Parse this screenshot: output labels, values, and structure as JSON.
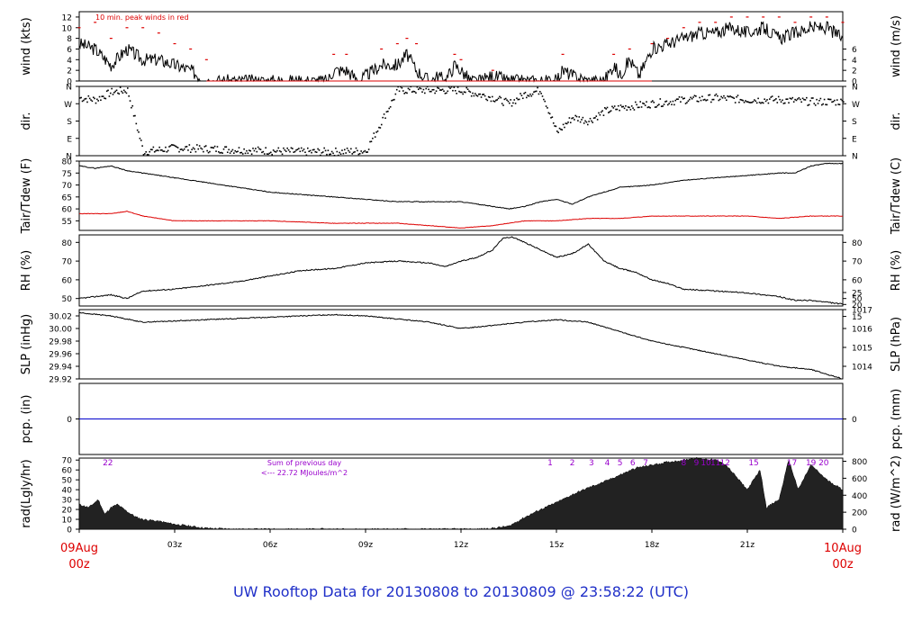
{
  "chart_data": {
    "type": "line",
    "title": "UW Rooftop Data for 20130808  to  20130809 @ 23:58:22  (UTC)",
    "x_start_label": [
      "09Aug",
      "00z"
    ],
    "x_end_label": [
      "10Aug",
      "00z"
    ],
    "x_ticks": [
      "03z",
      "06z",
      "09z",
      "12z",
      "15z",
      "18z",
      "21z"
    ],
    "x_tick_hours": [
      3,
      6,
      9,
      12,
      15,
      18,
      21
    ],
    "x_range_hours": [
      0,
      24
    ],
    "grid": false,
    "colors": {
      "main": "#000000",
      "peak": "#dd0000",
      "dew": "#dd0000",
      "precip": "#0000cc",
      "annot": "#9900cc",
      "title": "#1f2fc8",
      "date": "#dd0000"
    },
    "panels": [
      {
        "key": "wind",
        "left_label": "wind (kts)",
        "right_label": "wind (m/s)",
        "left_ticks": [
          "0",
          "2",
          "4",
          "6",
          "8",
          "10",
          "12"
        ],
        "left_tick_values": [
          0,
          2,
          4,
          6,
          8,
          10,
          12
        ],
        "right_ticks": [
          "0",
          "2",
          "4",
          "6"
        ],
        "right_tick_values": [
          0,
          2,
          4,
          6
        ],
        "ylim": [
          0,
          13
        ],
        "annotation": "10 min. peak winds in red",
        "series": [
          {
            "role": "wind",
            "hours": [
              0,
              0.5,
              1,
              1.5,
              2,
              2.5,
              3,
              3.5,
              4,
              5,
              6,
              7,
              7.8,
              8,
              8.4,
              8.8,
              9,
              9.5,
              10,
              10.3,
              10.6,
              11,
              11.3,
              11.5,
              11.8,
              12,
              12.3,
              12.6,
              13,
              13.5,
              14,
              14.5,
              15,
              15.2,
              15.5,
              16,
              16.5,
              16.8,
              17,
              17.3,
              17.6,
              18,
              18.5,
              19,
              19.5,
              20,
              20.5,
              21,
              21.5,
              22,
              22.5,
              23,
              23.5,
              24
            ],
            "values": [
              7,
              6,
              3,
              6,
              4,
              4,
              3,
              2,
              0,
              0,
              0,
              0,
              0,
              2,
              2,
              0,
              1,
              3,
              3,
              5,
              2,
              0,
              1,
              0,
              3,
              2,
              0,
              0,
              1,
              0,
              0,
              0,
              0,
              2,
              1,
              0,
              0,
              3,
              1,
              4,
              1,
              6,
              7,
              8,
              9,
              9,
              10,
              9,
              10,
              8,
              9,
              10,
              10,
              8
            ]
          },
          {
            "role": "peak",
            "hours": [
              0,
              0.5,
              1,
              1.5,
              2,
              2.5,
              3,
              3.5,
              4,
              8,
              8.4,
              9.5,
              10,
              10.3,
              10.6,
              11.8,
              12,
              13,
              15.2,
              16.8,
              17.3,
              18,
              18.5,
              19,
              19.5,
              20,
              20.5,
              21,
              21.5,
              22,
              22.5,
              23,
              23.5,
              24
            ],
            "values": [
              10,
              11,
              8,
              10,
              10,
              9,
              7,
              6,
              4,
              5,
              5,
              6,
              7,
              8,
              7,
              5,
              4,
              2,
              5,
              5,
              6,
              7,
              8,
              10,
              11,
              11,
              12,
              12,
              12,
              12,
              11,
              12,
              12,
              11
            ]
          }
        ]
      },
      {
        "key": "dir",
        "left_label": "dir.",
        "right_label": "dir.",
        "left_ticks": [
          "N",
          "E",
          "S",
          "W",
          "N"
        ],
        "left_tick_values": [
          0,
          90,
          180,
          270,
          360
        ],
        "right_ticks": [
          "N",
          "E",
          "S",
          "W",
          "N"
        ],
        "right_tick_values": [
          0,
          90,
          180,
          270,
          360
        ],
        "ylim": [
          0,
          360
        ],
        "series": [
          {
            "role": "dir",
            "hours": [
              0,
              0.5,
              1,
              1.5,
              2,
              2.5,
              3,
              4,
              5,
              6,
              7,
              8,
              9,
              10,
              11,
              12,
              12.5,
              13,
              13.5,
              14,
              14.5,
              15,
              15.5,
              16,
              16.5,
              17,
              17.5,
              18,
              19,
              20,
              21,
              22,
              23,
              24
            ],
            "values": [
              300,
              290,
              330,
              340,
              20,
              30,
              40,
              35,
              30,
              25,
              20,
              20,
              25,
              340,
              340,
              340,
              320,
              300,
              270,
              320,
              340,
              120,
              200,
              180,
              230,
              250,
              260,
              270,
              290,
              300,
              290,
              290,
              280,
              280
            ]
          }
        ]
      },
      {
        "key": "temp",
        "left_label": "Tair/Tdew (F)",
        "right_label": "Tair/Tdew (C)",
        "left_ticks": [
          "55",
          "60",
          "65",
          "70",
          "75",
          "80"
        ],
        "left_tick_values": [
          55,
          60,
          65,
          70,
          75,
          80
        ],
        "right_ticks": [
          "15",
          "20",
          "25"
        ],
        "right_tick_values": [
          15,
          20,
          25
        ],
        "ylim": [
          51,
          80
        ],
        "series": [
          {
            "role": "tair",
            "hours": [
              0,
              0.5,
              1,
              1.5,
              2,
              3,
              4,
              5,
              6,
              7,
              8,
              9,
              10,
              11,
              12,
              13,
              13.5,
              14,
              14.5,
              15,
              15.5,
              16,
              16.5,
              17,
              18,
              19,
              20,
              21,
              22,
              22.5,
              23,
              23.5,
              24
            ],
            "values": [
              78,
              77,
              78,
              76,
              75,
              73,
              71,
              69,
              67,
              66,
              65,
              64,
              63,
              63,
              63,
              61,
              60,
              61,
              63,
              64,
              62,
              65,
              67,
              69,
              70,
              72,
              73,
              74,
              75,
              75,
              78,
              79,
              79
            ]
          },
          {
            "role": "tdew",
            "hours": [
              0,
              1,
              1.5,
              2,
              3,
              4,
              6,
              8,
              10,
              11,
              12,
              13,
              14,
              15,
              16,
              17,
              18,
              19,
              20,
              21,
              22,
              23,
              24
            ],
            "values": [
              58,
              58,
              59,
              57,
              55,
              55,
              55,
              54,
              54,
              53,
              52,
              53,
              55,
              55,
              56,
              56,
              57,
              57,
              57,
              57,
              56,
              57,
              57
            ]
          }
        ]
      },
      {
        "key": "rh",
        "left_label": "RH (%)",
        "right_label": "RH (%)",
        "left_ticks": [
          "50",
          "60",
          "70",
          "80"
        ],
        "left_tick_values": [
          50,
          60,
          70,
          80
        ],
        "right_ticks": [
          "50",
          "60",
          "70",
          "80"
        ],
        "right_tick_values": [
          50,
          60,
          70,
          80
        ],
        "ylim": [
          46,
          84
        ],
        "series": [
          {
            "role": "rh",
            "hours": [
              0,
              0.5,
              1,
              1.5,
              2,
              3,
              4,
              5,
              6,
              7,
              8,
              9,
              10,
              11,
              11.5,
              12,
              12.5,
              13,
              13.3,
              13.6,
              14,
              14.5,
              15,
              15.5,
              16,
              16.5,
              17,
              17.5,
              18,
              18.5,
              19,
              20,
              21,
              22,
              22.5,
              23,
              23.5,
              24
            ],
            "values": [
              50,
              51,
              52,
              50,
              54,
              55,
              57,
              59,
              62,
              65,
              66,
              69,
              70,
              69,
              67,
              70,
              72,
              76,
              82,
              83,
              80,
              76,
              72,
              74,
              79,
              70,
              66,
              64,
              60,
              58,
              55,
              54,
              53,
              51,
              49,
              49,
              48,
              47
            ]
          }
        ]
      },
      {
        "key": "slp",
        "left_label": "SLP (inHg)",
        "right_label": "SLP (hPa)",
        "left_ticks": [
          "29.92",
          "29.94",
          "29.96",
          "29.98",
          "30.00",
          "30.02"
        ],
        "left_tick_values": [
          29.92,
          29.94,
          29.96,
          29.98,
          30.0,
          30.02
        ],
        "right_ticks": [
          "1014",
          "1015",
          "1016",
          "1017"
        ],
        "right_tick_values": [
          29.94,
          29.97,
          30.0,
          30.03
        ],
        "ylim": [
          29.92,
          30.03
        ],
        "series": [
          {
            "role": "slp",
            "hours": [
              0,
              1,
              2,
              3,
              4,
              5,
              6,
              7,
              8,
              9,
              10,
              11,
              11.5,
              12,
              13,
              14,
              15,
              16,
              17,
              18,
              19,
              20,
              21,
              22,
              23,
              24
            ],
            "values": [
              30.025,
              30.02,
              30.01,
              30.012,
              30.014,
              30.016,
              30.018,
              30.02,
              30.022,
              30.02,
              30.015,
              30.01,
              30.005,
              30.0,
              30.005,
              30.01,
              30.014,
              30.01,
              29.995,
              29.98,
              29.97,
              29.96,
              29.95,
              29.94,
              29.935,
              29.92
            ]
          }
        ]
      },
      {
        "key": "pcp",
        "left_label": "pcp. (in)",
        "right_label": "pcp. (mm)",
        "left_ticks": [
          "0"
        ],
        "left_tick_values": [
          0
        ],
        "right_ticks": [
          "0"
        ],
        "right_tick_values": [
          0
        ],
        "ylim": [
          -1,
          1
        ],
        "series": [
          {
            "role": "pcp",
            "hours": [
              0,
              24
            ],
            "values": [
              0,
              0
            ]
          }
        ]
      },
      {
        "key": "rad",
        "left_label": "rad(Lgly/hr)",
        "right_label": "rad (W/m^2)",
        "left_ticks": [
          "0",
          "10",
          "20",
          "30",
          "40",
          "50",
          "60",
          "70"
        ],
        "left_tick_values": [
          0,
          10,
          20,
          30,
          40,
          50,
          60,
          70
        ],
        "right_ticks": [
          "0",
          "200",
          "400",
          "600",
          "800"
        ],
        "right_tick_values": [
          0,
          17.2,
          34.4,
          51.6,
          68.8
        ],
        "ylim": [
          0,
          72
        ],
        "annotation_lines": [
          "Sum of previous day",
          "<--- 22.72 MJoules/m^2"
        ],
        "hour_marks": [
          {
            "label": "22",
            "hour": 0.9
          },
          {
            "label": "1",
            "hour": 14.8
          },
          {
            "label": "2",
            "hour": 15.5
          },
          {
            "label": "3",
            "hour": 16.1
          },
          {
            "label": "4",
            "hour": 16.6
          },
          {
            "label": "5",
            "hour": 17.0
          },
          {
            "label": "6",
            "hour": 17.4
          },
          {
            "label": "7",
            "hour": 17.8
          },
          {
            "label": "8",
            "hour": 19.0
          },
          {
            "label": "9",
            "hour": 19.4
          },
          {
            "label": "10",
            "hour": 19.7
          },
          {
            "label": "11",
            "hour": 20.0
          },
          {
            "label": "12",
            "hour": 20.3
          },
          {
            "label": "15",
            "hour": 21.2
          },
          {
            "label": "17",
            "hour": 22.4
          },
          {
            "label": "19",
            "hour": 23.0
          },
          {
            "label": "20",
            "hour": 23.4
          }
        ],
        "series": [
          {
            "role": "rad",
            "hours": [
              0,
              0.3,
              0.6,
              0.8,
              1,
              1.2,
              1.5,
              1.8,
              2,
              2.5,
              3,
              3.5,
              4,
              5,
              6,
              7,
              8,
              9,
              10,
              11,
              12,
              12.5,
              13,
              13.5,
              14,
              14.5,
              15,
              15.5,
              16,
              16.5,
              17,
              17.5,
              18,
              18.5,
              19,
              19.3,
              19.7,
              20,
              20.3,
              20.6,
              21,
              21.2,
              21.4,
              21.6,
              22,
              22.3,
              22.6,
              23,
              23.5,
              24
            ],
            "values": [
              25,
              22,
              30,
              15,
              22,
              25,
              18,
              12,
              10,
              8,
              5,
              3,
              1,
              0,
              0,
              0,
              0,
              0,
              0,
              0,
              0,
              0,
              1,
              3,
              12,
              20,
              27,
              35,
              42,
              48,
              55,
              62,
              65,
              68,
              70,
              72,
              71,
              70,
              66,
              55,
              40,
              50,
              60,
              22,
              30,
              70,
              40,
              65,
              50,
              40
            ]
          }
        ]
      }
    ]
  }
}
